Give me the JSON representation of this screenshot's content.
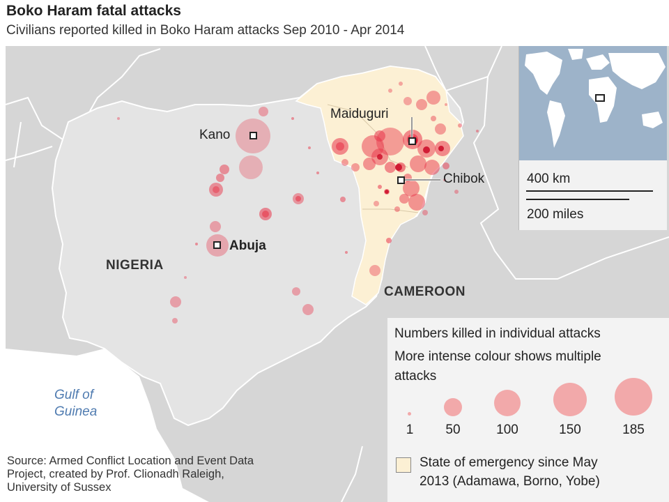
{
  "title": "Boko Haram fatal attacks",
  "subtitle": "Civilians reported killed in Boko Haram attacks Sep 2010 - Apr 2014",
  "cities": {
    "kano": "Kano",
    "abuja": "Abuja",
    "maiduguri": "Maiduguri",
    "chibok": "Chibok"
  },
  "countries": {
    "nigeria": "NIGERIA",
    "cameroon": "CAMEROON"
  },
  "sea": {
    "line1": "Gulf of",
    "line2": "Guinea"
  },
  "scale": {
    "km": "400 km",
    "miles": "200 miles"
  },
  "legend": {
    "title_line1": "Numbers killed in individual attacks",
    "title_line2": "More intense colour shows multiple",
    "title_line3": "attacks",
    "sizes": [
      "1",
      "50",
      "100",
      "150",
      "185"
    ],
    "emergency_line1": "State of emergency since May",
    "emergency_line2": "2013 (Adamawa, Borno, Yobe)"
  },
  "source": {
    "line1": "Source: Armed Conflict Location and Event Data",
    "line2": "Project, created by Prof. Clionadh Raleigh,",
    "line3": "University of Sussex"
  },
  "colors": {
    "sea": "#ffffff",
    "land": "#dadada",
    "nigeria": "#e3e3e3",
    "emergency": "#fcf0d4",
    "attack": "#e8354a",
    "attack_dark": "#c8001e",
    "inset_ocean": "#9db3c9"
  }
}
